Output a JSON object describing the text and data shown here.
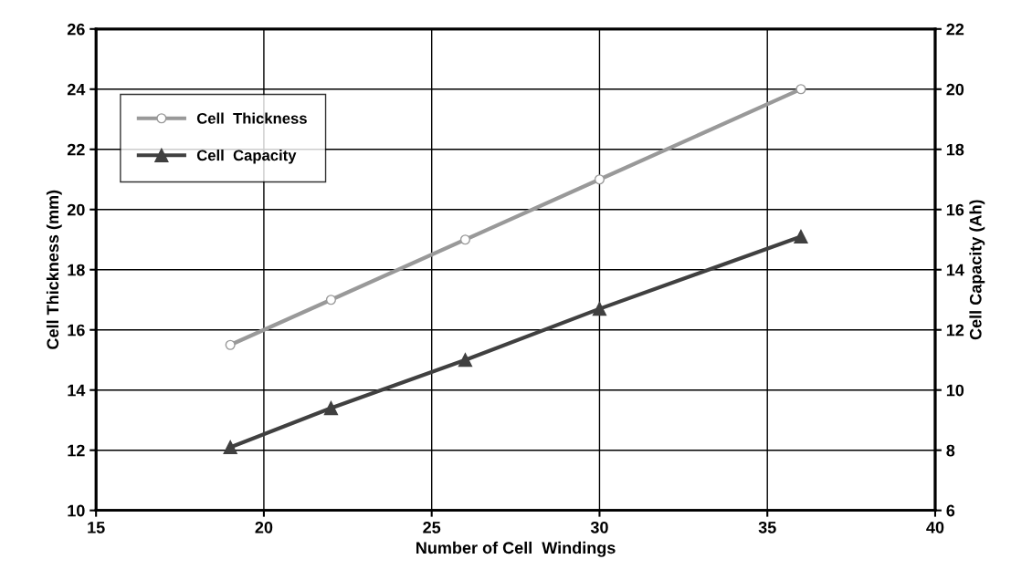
{
  "chart_data": {
    "type": "line",
    "xlabel": "Number of Cell  Windings",
    "ylabel": "Cell Thickness (mm)",
    "y2label": "Cell Capacity (Ah)",
    "x": [
      19,
      22,
      26,
      30,
      36
    ],
    "series": [
      {
        "name": "Cell  Thickness",
        "color": "#999999",
        "marker": "circle",
        "values": [
          15.5,
          17,
          19,
          21,
          24
        ]
      },
      {
        "name": "Cell  Capacity",
        "color": "#404040",
        "marker": "triangle",
        "axis": "y2",
        "values": [
          8.1,
          9.4,
          11.0,
          12.7,
          15.1
        ]
      }
    ],
    "xlim": [
      15,
      40
    ],
    "xticks": [
      15,
      20,
      25,
      30,
      35,
      40
    ],
    "ylim": [
      10,
      26
    ],
    "yticks": [
      10,
      12,
      14,
      16,
      18,
      20,
      22,
      24,
      26
    ],
    "y2lim": [
      6,
      22
    ],
    "y2ticks": [
      6,
      8,
      10,
      12,
      14,
      16,
      18,
      20,
      22
    ],
    "grid": true,
    "legend": "top left",
    "line_style": "solid"
  }
}
